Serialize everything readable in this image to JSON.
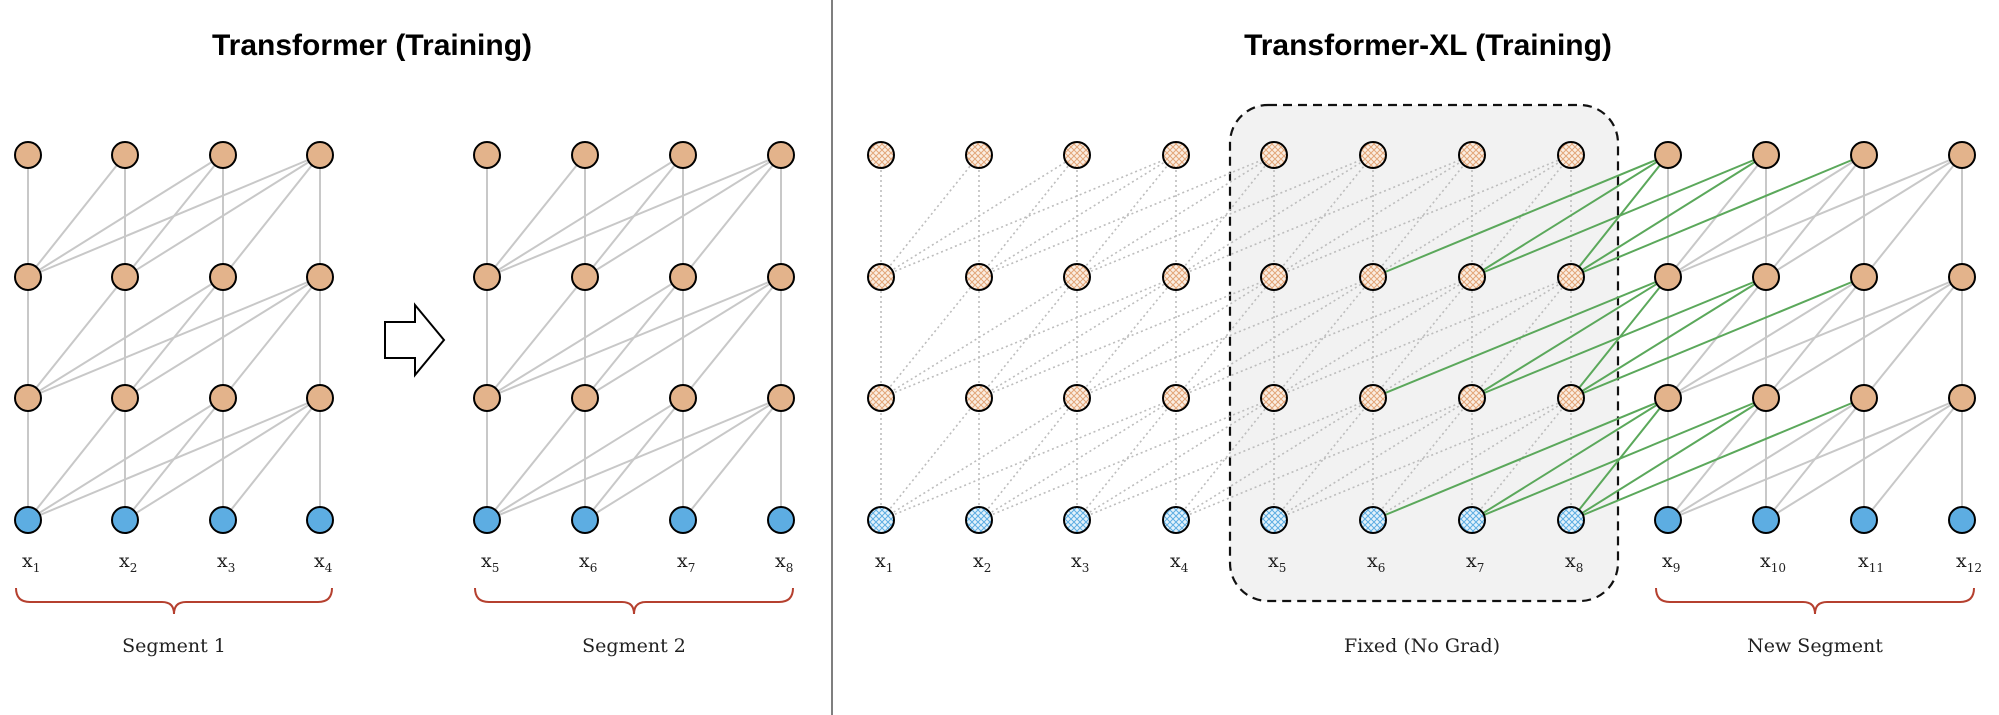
{
  "left_panel": {
    "title": "Transformer (Training)",
    "segments": [
      {
        "label": "Segment 1",
        "tokens": [
          {
            "base": "x",
            "sub": "1"
          },
          {
            "base": "x",
            "sub": "2"
          },
          {
            "base": "x",
            "sub": "3"
          },
          {
            "base": "x",
            "sub": "4"
          }
        ]
      },
      {
        "label": "Segment 2",
        "tokens": [
          {
            "base": "x",
            "sub": "5"
          },
          {
            "base": "x",
            "sub": "6"
          },
          {
            "base": "x",
            "sub": "7"
          },
          {
            "base": "x",
            "sub": "8"
          }
        ]
      }
    ],
    "arrow_icon": "right-arrow-outline"
  },
  "right_panel": {
    "title": "Transformer-XL (Training)",
    "tokens": [
      {
        "base": "x",
        "sub": "1"
      },
      {
        "base": "x",
        "sub": "2"
      },
      {
        "base": "x",
        "sub": "3"
      },
      {
        "base": "x",
        "sub": "4"
      },
      {
        "base": "x",
        "sub": "5"
      },
      {
        "base": "x",
        "sub": "6"
      },
      {
        "base": "x",
        "sub": "7"
      },
      {
        "base": "x",
        "sub": "8"
      },
      {
        "base": "x",
        "sub": "9"
      },
      {
        "base": "x",
        "sub": "10"
      },
      {
        "base": "x",
        "sub": "11"
      },
      {
        "base": "x",
        "sub": "12"
      }
    ],
    "fixed_label": "Fixed (No Grad)",
    "new_segment_label": "New Segment"
  },
  "colors": {
    "hidden_node": "#E3B38B",
    "input_node": "#5DADE2",
    "edge": "#C8C8C8",
    "memory_edge": "#5BA85B",
    "brace": "#B5402F",
    "fixed_box": "#F2F2F2"
  }
}
